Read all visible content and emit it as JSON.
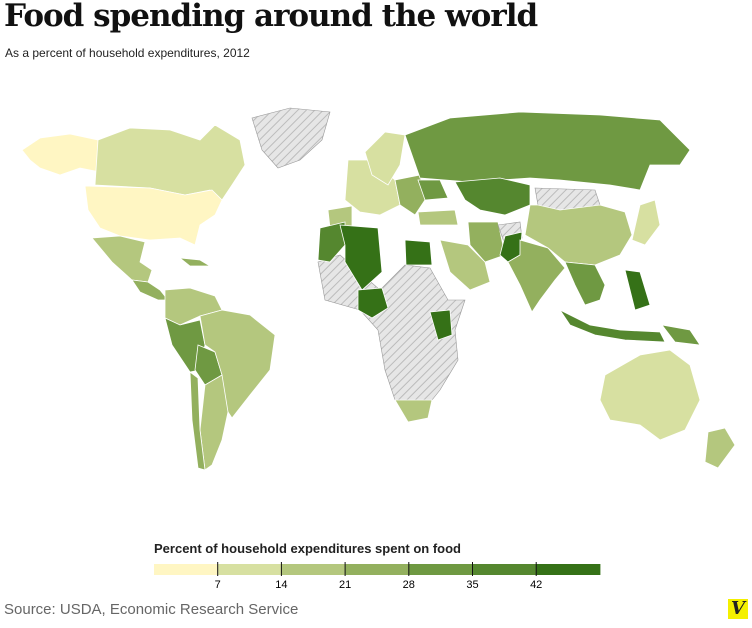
{
  "header": {
    "title": "Food spending around the world",
    "subtitle": "As a percent of household expenditures, 2012"
  },
  "legend": {
    "title": "Percent of household expenditures spent on food",
    "ticks": [
      "7",
      "14",
      "21",
      "28",
      "35",
      "42"
    ],
    "colors": [
      "#fff6c3",
      "#d7e0a1",
      "#b4c77e",
      "#93b05e",
      "#6f9942",
      "#55872f",
      "#357117"
    ],
    "nodata_color": "#e4e4e4"
  },
  "map": {
    "regions": [
      {
        "id": "alaska",
        "level": 0
      },
      {
        "id": "canada",
        "level": 1
      },
      {
        "id": "greenland",
        "level": null
      },
      {
        "id": "united-states",
        "level": 0
      },
      {
        "id": "mexico",
        "level": 2
      },
      {
        "id": "central-america",
        "level": 3
      },
      {
        "id": "caribbean",
        "level": 3
      },
      {
        "id": "colombia-venezuela",
        "level": 2
      },
      {
        "id": "peru",
        "level": 4
      },
      {
        "id": "bolivia",
        "level": 4
      },
      {
        "id": "brazil",
        "level": 2
      },
      {
        "id": "argentina",
        "level": 2
      },
      {
        "id": "chile",
        "level": 3
      },
      {
        "id": "western-europe",
        "level": 1
      },
      {
        "id": "scandinavia",
        "level": 1
      },
      {
        "id": "iberia",
        "level": 2
      },
      {
        "id": "eastern-europe",
        "level": 3
      },
      {
        "id": "ukraine",
        "level": 4
      },
      {
        "id": "russia",
        "level": 4
      },
      {
        "id": "kazakhstan",
        "level": 5
      },
      {
        "id": "turkey",
        "level": 2
      },
      {
        "id": "iran",
        "level": 3
      },
      {
        "id": "saudi-arabia",
        "level": 2
      },
      {
        "id": "afghanistan",
        "level": null
      },
      {
        "id": "pakistan",
        "level": 6
      },
      {
        "id": "india",
        "level": 3
      },
      {
        "id": "mongolia",
        "level": null
      },
      {
        "id": "china",
        "level": 2
      },
      {
        "id": "southeast-asia",
        "level": 4
      },
      {
        "id": "indonesia",
        "level": 5
      },
      {
        "id": "philippines",
        "level": 6
      },
      {
        "id": "japan",
        "level": 1
      },
      {
        "id": "papua",
        "level": 4
      },
      {
        "id": "australia",
        "level": 1
      },
      {
        "id": "new-zealand",
        "level": 2
      },
      {
        "id": "africa-other",
        "level": null
      },
      {
        "id": "morocco",
        "level": 5
      },
      {
        "id": "algeria",
        "level": 6
      },
      {
        "id": "egypt",
        "level": 6
      },
      {
        "id": "nigeria",
        "level": 6
      },
      {
        "id": "kenya",
        "level": 6
      },
      {
        "id": "south-africa",
        "level": 2
      }
    ]
  },
  "footer": {
    "source": "Source: USDA, Economic Research Service",
    "logo": "V"
  }
}
